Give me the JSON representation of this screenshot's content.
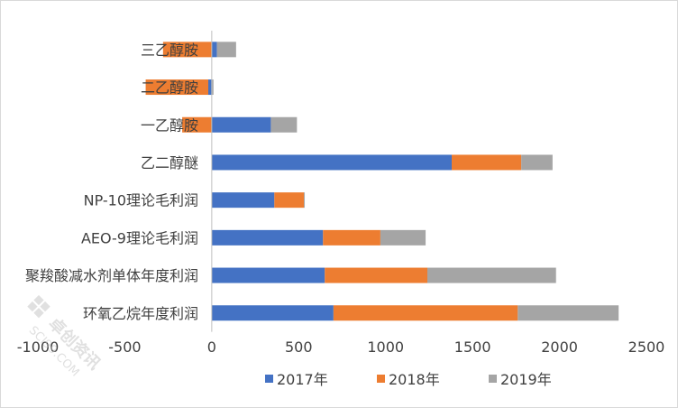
{
  "chart_data": {
    "type": "bar",
    "orientation": "horizontal",
    "stacked": true,
    "categories": [
      "三乙醇胺",
      "二乙醇胺",
      "一乙醇胺",
      "乙二醇醚",
      "NP-10理论毛利润",
      "AEO-9理论毛利润",
      "聚羧酸减水剂单体年度利润",
      "环氧乙烷年度利润"
    ],
    "series": [
      {
        "name": "2017年",
        "color": "#4472c4",
        "values": [
          30,
          -20,
          340,
          1380,
          360,
          640,
          650,
          700
        ]
      },
      {
        "name": "2018年",
        "color": "#ed7d31",
        "values": [
          -280,
          -360,
          -170,
          400,
          170,
          330,
          590,
          1060
        ]
      },
      {
        "name": "2019年",
        "color": "#a5a5a5",
        "values": [
          110,
          10,
          150,
          180,
          5,
          260,
          740,
          580
        ]
      }
    ],
    "xlim": [
      -1000,
      2500
    ],
    "xticks": [
      -1000,
      -500,
      0,
      500,
      1000,
      1500,
      2000,
      2500
    ],
    "title": "",
    "xlabel": "",
    "ylabel": "",
    "grid": false,
    "legend_position": "bottom"
  },
  "watermark": {
    "brand": "卓创资讯",
    "url": "SCI99.COM"
  }
}
